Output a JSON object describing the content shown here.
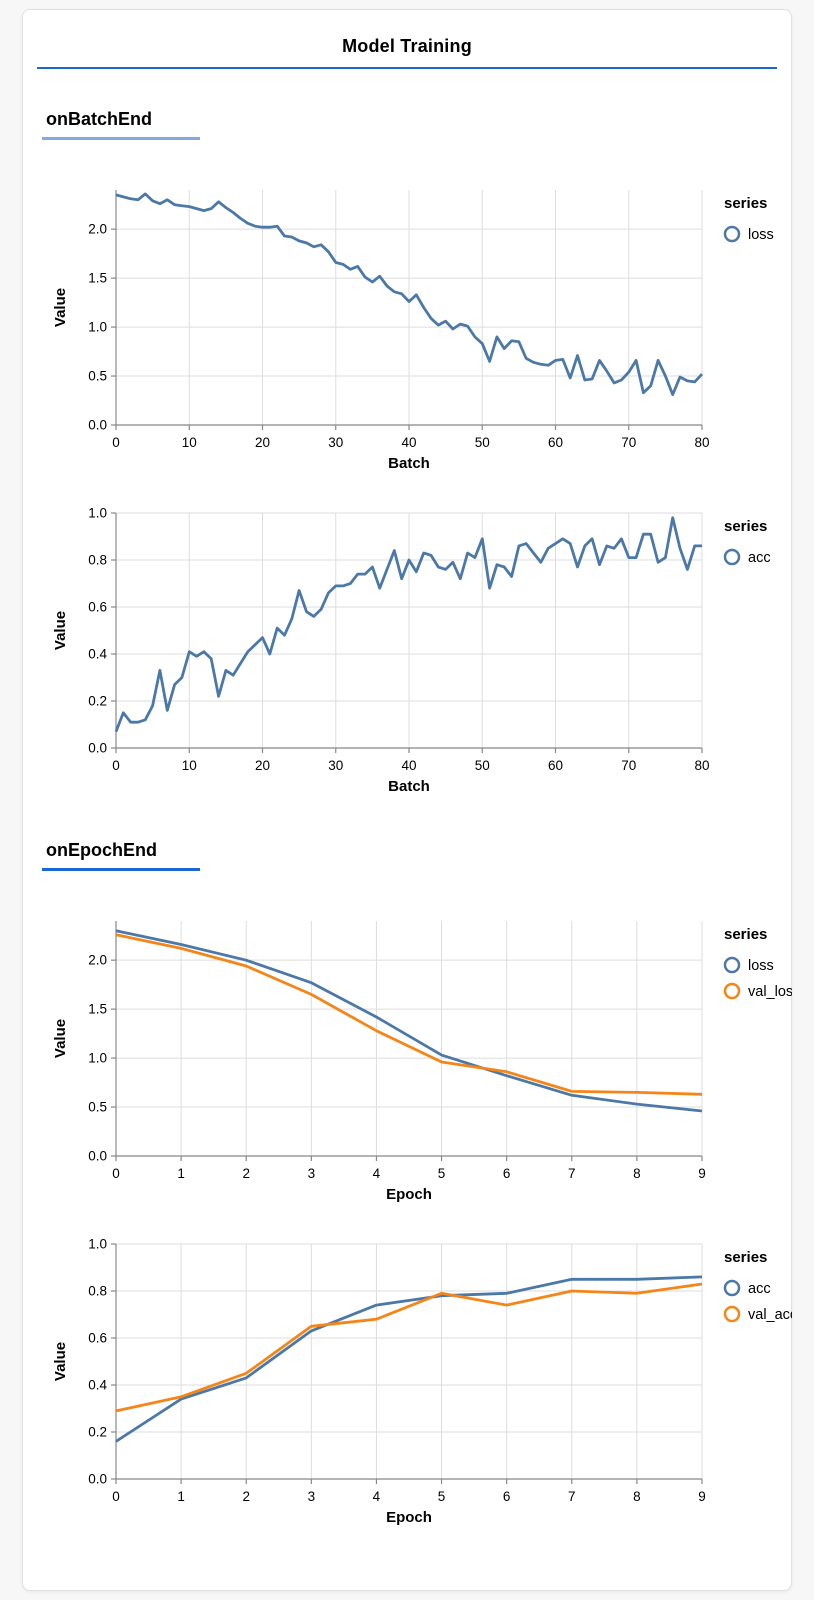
{
  "header": {
    "title": "Model Training"
  },
  "sections": [
    {
      "title": "onBatchEnd",
      "underline_color": "#86a8e0"
    },
    {
      "title": "onEpochEnd",
      "underline_color": "#1a66d2"
    }
  ],
  "colors": {
    "page_background": "#f7f7f8",
    "card_background": "#ffffff",
    "card_border": "#e2e2e4",
    "title_rule": "#1a66d2",
    "grid": "#dddddd",
    "axis": "#888888",
    "text": "#000000",
    "series_blue": "#4c78a8",
    "series_orange": "#f58518"
  },
  "chart_data": [
    {
      "id": "batch-loss",
      "type": "line",
      "section": 0,
      "xlabel": "Batch",
      "ylabel": "Value",
      "legend_title": "series",
      "legend_position": "right",
      "grid": true,
      "xlim": [
        0,
        80
      ],
      "ylim": [
        0,
        2.4
      ],
      "xticks": [
        0,
        10,
        20,
        30,
        40,
        50,
        60,
        70,
        80
      ],
      "yticks": [
        0.0,
        0.5,
        1.0,
        1.5,
        2.0
      ],
      "x": [
        0,
        1,
        2,
        3,
        4,
        5,
        6,
        7,
        8,
        9,
        10,
        11,
        12,
        13,
        14,
        15,
        16,
        17,
        18,
        19,
        20,
        21,
        22,
        23,
        24,
        25,
        26,
        27,
        28,
        29,
        30,
        31,
        32,
        33,
        34,
        35,
        36,
        37,
        38,
        39,
        40,
        41,
        42,
        43,
        44,
        45,
        46,
        47,
        48,
        49,
        50,
        51,
        52,
        53,
        54,
        55,
        56,
        57,
        58,
        59,
        60,
        61,
        62,
        63,
        64,
        65,
        66,
        67,
        68,
        69,
        70,
        71,
        72,
        73,
        74,
        75,
        76,
        77,
        78,
        79,
        80
      ],
      "series": [
        {
          "name": "loss",
          "color": "#4c78a8",
          "values": [
            2.35,
            2.33,
            2.31,
            2.3,
            2.36,
            2.29,
            2.26,
            2.3,
            2.25,
            2.24,
            2.23,
            2.21,
            2.19,
            2.21,
            2.28,
            2.22,
            2.17,
            2.11,
            2.06,
            2.03,
            2.02,
            2.02,
            2.03,
            1.93,
            1.92,
            1.88,
            1.86,
            1.82,
            1.84,
            1.77,
            1.66,
            1.64,
            1.59,
            1.62,
            1.51,
            1.46,
            1.52,
            1.42,
            1.36,
            1.34,
            1.26,
            1.33,
            1.2,
            1.09,
            1.02,
            1.06,
            0.98,
            1.03,
            1.01,
            0.9,
            0.83,
            0.65,
            0.9,
            0.78,
            0.86,
            0.85,
            0.68,
            0.64,
            0.62,
            0.61,
            0.66,
            0.67,
            0.48,
            0.71,
            0.46,
            0.47,
            0.66,
            0.55,
            0.43,
            0.46,
            0.54,
            0.66,
            0.33,
            0.4,
            0.66,
            0.5,
            0.31,
            0.49,
            0.45,
            0.44,
            0.52
          ]
        }
      ]
    },
    {
      "id": "batch-acc",
      "type": "line",
      "section": 0,
      "xlabel": "Batch",
      "ylabel": "Value",
      "legend_title": "series",
      "legend_position": "right",
      "grid": true,
      "xlim": [
        0,
        80
      ],
      "ylim": [
        0,
        1.0
      ],
      "xticks": [
        0,
        10,
        20,
        30,
        40,
        50,
        60,
        70,
        80
      ],
      "yticks": [
        0.0,
        0.2,
        0.4,
        0.6,
        0.8,
        1.0
      ],
      "x": [
        0,
        1,
        2,
        3,
        4,
        5,
        6,
        7,
        8,
        9,
        10,
        11,
        12,
        13,
        14,
        15,
        16,
        17,
        18,
        19,
        20,
        21,
        22,
        23,
        24,
        25,
        26,
        27,
        28,
        29,
        30,
        31,
        32,
        33,
        34,
        35,
        36,
        37,
        38,
        39,
        40,
        41,
        42,
        43,
        44,
        45,
        46,
        47,
        48,
        49,
        50,
        51,
        52,
        53,
        54,
        55,
        56,
        57,
        58,
        59,
        60,
        61,
        62,
        63,
        64,
        65,
        66,
        67,
        68,
        69,
        70,
        71,
        72,
        73,
        74,
        75,
        76,
        77,
        78,
        79,
        80
      ],
      "series": [
        {
          "name": "acc",
          "color": "#4c78a8",
          "values": [
            0.07,
            0.15,
            0.11,
            0.11,
            0.12,
            0.18,
            0.33,
            0.16,
            0.27,
            0.3,
            0.41,
            0.39,
            0.41,
            0.38,
            0.22,
            0.33,
            0.31,
            0.36,
            0.41,
            0.44,
            0.47,
            0.4,
            0.51,
            0.48,
            0.55,
            0.67,
            0.58,
            0.56,
            0.59,
            0.66,
            0.69,
            0.69,
            0.7,
            0.74,
            0.74,
            0.77,
            0.68,
            0.76,
            0.84,
            0.72,
            0.8,
            0.75,
            0.83,
            0.82,
            0.77,
            0.76,
            0.79,
            0.72,
            0.83,
            0.81,
            0.89,
            0.68,
            0.78,
            0.77,
            0.73,
            0.86,
            0.87,
            0.83,
            0.79,
            0.85,
            0.87,
            0.89,
            0.87,
            0.77,
            0.86,
            0.89,
            0.78,
            0.86,
            0.85,
            0.89,
            0.81,
            0.81,
            0.91,
            0.91,
            0.79,
            0.81,
            0.98,
            0.85,
            0.76,
            0.86,
            0.86
          ]
        }
      ]
    },
    {
      "id": "epoch-loss",
      "type": "line",
      "section": 1,
      "xlabel": "Epoch",
      "ylabel": "Value",
      "legend_title": "series",
      "legend_position": "right",
      "grid": true,
      "xlim": [
        0,
        9
      ],
      "ylim": [
        0,
        2.4
      ],
      "xticks": [
        0,
        1,
        2,
        3,
        4,
        5,
        6,
        7,
        8,
        9
      ],
      "yticks": [
        0.0,
        0.5,
        1.0,
        1.5,
        2.0
      ],
      "x": [
        0,
        1,
        2,
        3,
        4,
        5,
        6,
        7,
        8,
        9
      ],
      "series": [
        {
          "name": "loss",
          "color": "#4c78a8",
          "values": [
            2.3,
            2.16,
            2.0,
            1.77,
            1.42,
            1.03,
            0.82,
            0.62,
            0.53,
            0.46
          ]
        },
        {
          "name": "val_loss",
          "color": "#f58518",
          "values": [
            2.26,
            2.12,
            1.94,
            1.65,
            1.28,
            0.96,
            0.86,
            0.66,
            0.65,
            0.63
          ]
        }
      ]
    },
    {
      "id": "epoch-acc",
      "type": "line",
      "section": 1,
      "xlabel": "Epoch",
      "ylabel": "Value",
      "legend_title": "series",
      "legend_position": "right",
      "grid": true,
      "xlim": [
        0,
        9
      ],
      "ylim": [
        0,
        1.0
      ],
      "xticks": [
        0,
        1,
        2,
        3,
        4,
        5,
        6,
        7,
        8,
        9
      ],
      "yticks": [
        0.0,
        0.2,
        0.4,
        0.6,
        0.8,
        1.0
      ],
      "x": [
        0,
        1,
        2,
        3,
        4,
        5,
        6,
        7,
        8,
        9
      ],
      "series": [
        {
          "name": "acc",
          "color": "#4c78a8",
          "values": [
            0.16,
            0.34,
            0.43,
            0.63,
            0.74,
            0.78,
            0.79,
            0.85,
            0.85,
            0.86
          ]
        },
        {
          "name": "val_acc",
          "color": "#f58518",
          "values": [
            0.29,
            0.35,
            0.45,
            0.65,
            0.68,
            0.79,
            0.74,
            0.8,
            0.79,
            0.83
          ]
        }
      ]
    }
  ]
}
